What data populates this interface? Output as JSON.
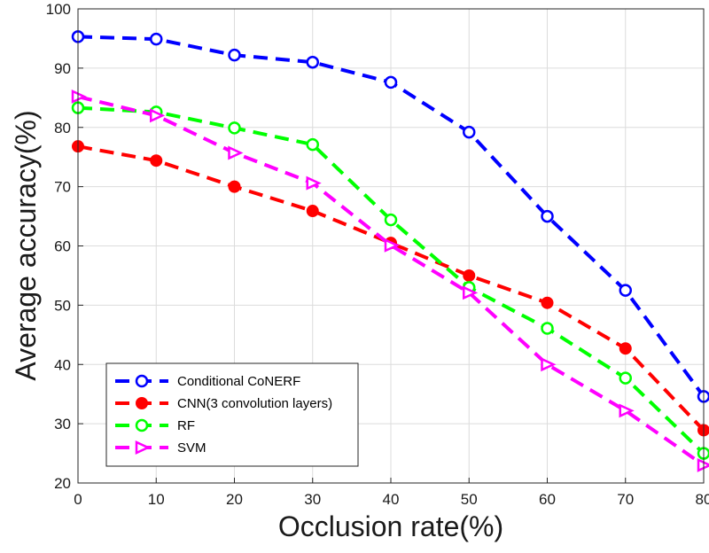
{
  "chart_data": {
    "type": "line",
    "title": "",
    "xlabel": "Occlusion rate(%)",
    "ylabel": "Average accuracy(%)",
    "xlim": [
      0,
      80
    ],
    "ylim": [
      20,
      100
    ],
    "x": [
      0,
      10,
      20,
      30,
      40,
      50,
      60,
      70,
      80
    ],
    "xticks": [
      "0",
      "10",
      "20",
      "30",
      "40",
      "50",
      "60",
      "70",
      "80"
    ],
    "yticks": [
      "20",
      "30",
      "40",
      "50",
      "60",
      "70",
      "80",
      "90",
      "100"
    ],
    "grid": true,
    "legend_position": "bottom-left",
    "series": [
      {
        "name": "Conditional CoNERF",
        "color": "#0000ff",
        "marker": "circle-open",
        "values": [
          95.3,
          94.9,
          92.2,
          91.0,
          87.6,
          79.2,
          65.0,
          52.5,
          34.6
        ]
      },
      {
        "name": "CNN(3 convolution layers)",
        "color": "#ff0000",
        "marker": "circle-filled",
        "values": [
          76.8,
          74.4,
          70.0,
          65.9,
          60.5,
          55.0,
          50.4,
          42.7,
          28.9
        ]
      },
      {
        "name": "RF",
        "color": "#00ff00",
        "marker": "circle-open",
        "values": [
          83.3,
          82.6,
          79.9,
          77.1,
          64.4,
          53.0,
          46.1,
          37.7,
          25.0
        ]
      },
      {
        "name": "SVM",
        "color": "#ff00ff",
        "marker": "triangle-right",
        "values": [
          85.2,
          82.0,
          75.7,
          70.6,
          60.1,
          52.1,
          40.0,
          32.2,
          23.0
        ]
      }
    ]
  }
}
